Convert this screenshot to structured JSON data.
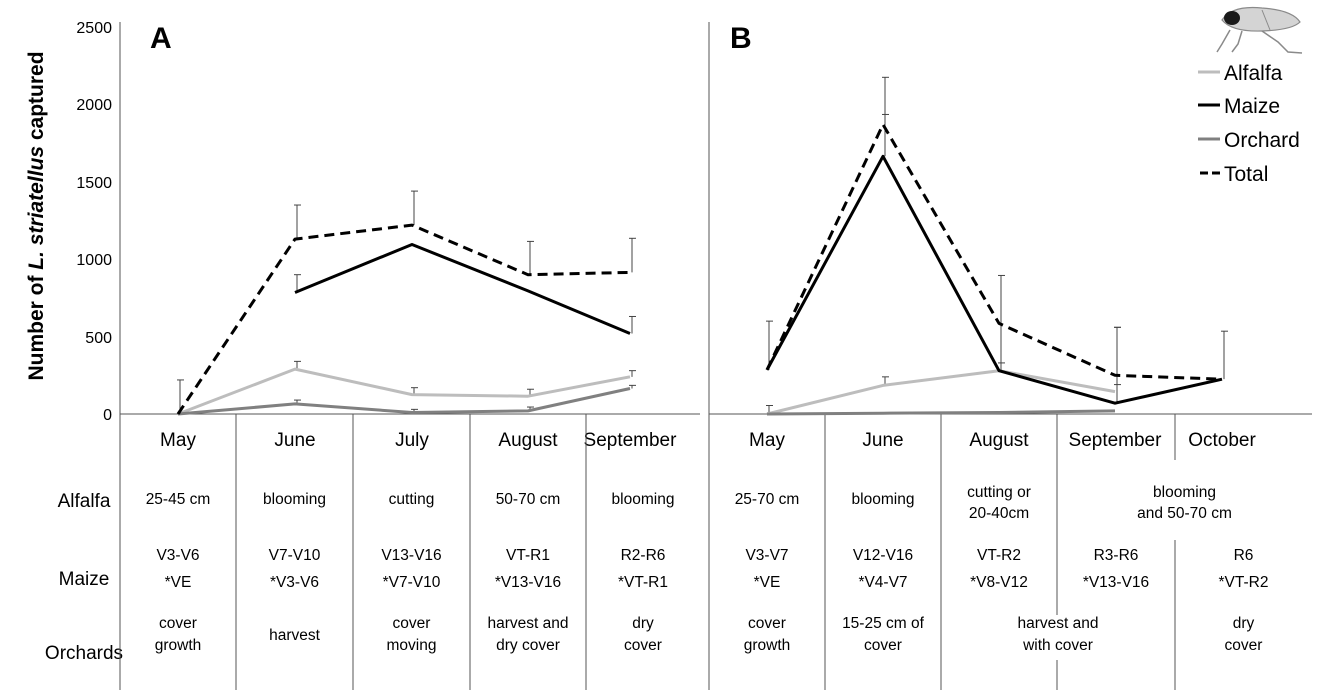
{
  "chart_data": {
    "type": "line",
    "ylabel_prefix": "Number of ",
    "ylabel_species": "L. striatellus",
    "ylabel_suffix": " captured",
    "ylim": [
      0,
      2500
    ],
    "yticks": [
      "0",
      "500",
      "1000",
      "1500",
      "2000",
      "2500"
    ],
    "legend": {
      "position": "top-right",
      "entries": [
        {
          "name": "Alfalfa",
          "color": "#bdbdbd",
          "style": "solid"
        },
        {
          "name": "Maize",
          "color": "#000000",
          "style": "solid"
        },
        {
          "name": "Orchard",
          "color": "#808080",
          "style": "solid"
        },
        {
          "name": "Total",
          "color": "#000000",
          "style": "dashed"
        }
      ]
    },
    "row_labels": [
      "Alfalfa",
      "Maize",
      "Orchards"
    ],
    "panels": [
      {
        "label": "A",
        "months": [
          "May",
          "June",
          "July",
          "August",
          "September"
        ],
        "series": [
          {
            "name": "Alfalfa",
            "values": [
              0,
              290,
              125,
              115,
              240
            ],
            "errors": [
              0,
              50,
              45,
              45,
              40
            ]
          },
          {
            "name": "Maize",
            "values": [
              null,
              785,
              1095,
              795,
              520
            ],
            "errors": [
              null,
              115,
              0,
              0,
              110
            ]
          },
          {
            "name": "Orchard",
            "values": [
              0,
              65,
              10,
              20,
              165
            ],
            "errors": [
              0,
              25,
              20,
              25,
              20
            ]
          },
          {
            "name": "Total",
            "values": [
              0,
              1130,
              1220,
              900,
              915
            ],
            "errors": [
              220,
              220,
              220,
              215,
              220
            ]
          }
        ],
        "rows": [
          [
            {
              "span": 1,
              "lines": [
                "25-45 cm"
              ]
            },
            {
              "span": 1,
              "lines": [
                "blooming"
              ]
            },
            {
              "span": 1,
              "lines": [
                "cutting"
              ]
            },
            {
              "span": 1,
              "lines": [
                "50-70 cm"
              ]
            },
            {
              "span": 1,
              "lines": [
                "blooming"
              ]
            }
          ],
          [
            {
              "span": 1,
              "lines": [
                "V3-V6",
                "*VE"
              ]
            },
            {
              "span": 1,
              "lines": [
                "V7-V10",
                "*V3-V6"
              ]
            },
            {
              "span": 1,
              "lines": [
                "V13-V16",
                "*V7-V10"
              ]
            },
            {
              "span": 1,
              "lines": [
                "VT-R1",
                "*V13-V16"
              ]
            },
            {
              "span": 1,
              "lines": [
                "R2-R6",
                "*VT-R1"
              ]
            }
          ],
          [
            {
              "span": 1,
              "lines": [
                "cover",
                "growth"
              ]
            },
            {
              "span": 1,
              "lines": [
                "harvest"
              ]
            },
            {
              "span": 1,
              "lines": [
                "cover",
                "moving"
              ]
            },
            {
              "span": 1,
              "lines": [
                "harvest and",
                "dry cover"
              ]
            },
            {
              "span": 1,
              "lines": [
                "dry",
                "cover"
              ]
            }
          ]
        ]
      },
      {
        "label": "B",
        "months": [
          "May",
          "June",
          "August",
          "September",
          "October"
        ],
        "series": [
          {
            "name": "Alfalfa",
            "values": [
              0,
              185,
              280,
              145,
              null
            ],
            "errors": [
              55,
              55,
              50,
              45,
              null
            ]
          },
          {
            "name": "Maize",
            "values": [
              285,
              1665,
              280,
              70,
              225
            ],
            "errors": [
              315,
              270,
              615,
              490,
              310
            ]
          },
          {
            "name": "Orchard",
            "values": [
              0,
              5,
              10,
              20,
              null
            ],
            "errors": [
              0,
              0,
              0,
              0,
              null
            ]
          },
          {
            "name": "Total",
            "values": [
              285,
              1870,
              585,
              250,
              225
            ],
            "errors": [
              0,
              305,
              0,
              310,
              0
            ]
          }
        ],
        "rows": [
          [
            {
              "span": 1,
              "lines": [
                "25-70 cm"
              ]
            },
            {
              "span": 1,
              "lines": [
                "blooming"
              ]
            },
            {
              "span": 1,
              "lines": [
                "cutting or",
                "20-40cm"
              ]
            },
            {
              "span": 2,
              "lines": [
                "blooming",
                "and 50-70 cm"
              ]
            }
          ],
          [
            {
              "span": 1,
              "lines": [
                "V3-V7",
                "*VE"
              ]
            },
            {
              "span": 1,
              "lines": [
                "V12-V16",
                "*V4-V7"
              ]
            },
            {
              "span": 1,
              "lines": [
                "VT-R2",
                "*V8-V12"
              ]
            },
            {
              "span": 1,
              "lines": [
                "R3-R6",
                "*V13-V16"
              ]
            },
            {
              "span": 1,
              "lines": [
                "R6",
                "*VT-R2"
              ]
            }
          ],
          [
            {
              "span": 1,
              "lines": [
                "cover",
                "growth"
              ]
            },
            {
              "span": 1,
              "lines": [
                "15-25 cm of",
                "cover"
              ]
            },
            {
              "span": 2,
              "lines": [
                "harvest and",
                "with cover"
              ]
            },
            {
              "span": 1,
              "lines": [
                "dry",
                "cover"
              ]
            }
          ]
        ]
      }
    ]
  }
}
